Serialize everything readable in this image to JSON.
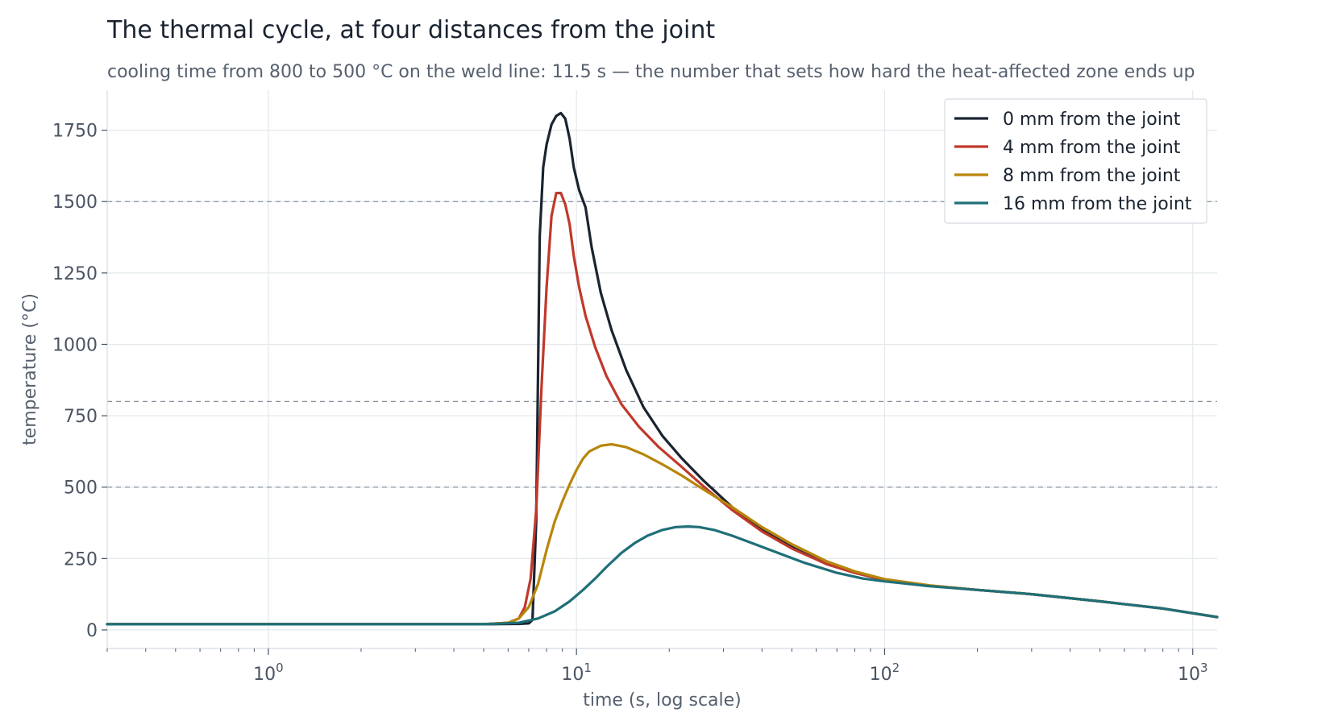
{
  "title": "The thermal cycle, at four distances from the joint",
  "subtitle": "cooling time from 800 to 500 °C on the weld line: 11.5 s — the number that sets how hard the heat-affected zone ends up",
  "chart_data": {
    "type": "line",
    "title": "The thermal cycle, at four distances from the joint",
    "subtitle": "cooling time from 800 to 500 °C on the weld line: 11.5 s — the number that sets how hard the heat-affected zone ends up",
    "xlabel": "time  (s, log scale)",
    "ylabel": "temperature  (°C)",
    "x_scale": "log",
    "xlim": [
      0.3,
      1200
    ],
    "ylim": [
      -65,
      1890
    ],
    "x_ticks": [
      {
        "value": 1,
        "base": "10",
        "exp": "0"
      },
      {
        "value": 10,
        "base": "10",
        "exp": "1"
      },
      {
        "value": 100,
        "base": "10",
        "exp": "2"
      },
      {
        "value": 1000,
        "base": "10",
        "exp": "3"
      }
    ],
    "y_ticks": [
      0,
      250,
      500,
      750,
      1000,
      1250,
      1500,
      1750
    ],
    "reference_lines": [
      1500,
      800,
      500
    ],
    "grid": true,
    "legend_position": "top-right",
    "series": [
      {
        "name": "0 mm from the joint",
        "color": "#1b2430",
        "x": [
          0.3,
          5.0,
          6.5,
          7.0,
          7.2,
          7.4,
          7.6,
          7.8,
          8.0,
          8.3,
          8.6,
          8.9,
          9.2,
          9.5,
          9.8,
          10.2,
          10.7,
          11.2,
          12.0,
          13.0,
          14.5,
          16.5,
          19.0,
          22.0,
          26.0,
          32.0,
          40.0,
          50.0,
          65.0,
          80.0,
          100.0,
          140.0,
          200.0,
          300.0,
          500.0,
          800.0,
          1200.0
        ],
        "y": [
          20,
          20,
          21,
          23,
          35,
          380,
          1380,
          1620,
          1700,
          1770,
          1800,
          1810,
          1790,
          1720,
          1620,
          1540,
          1480,
          1340,
          1180,
          1050,
          910,
          780,
          680,
          600,
          520,
          430,
          350,
          290,
          230,
          200,
          175,
          155,
          140,
          125,
          100,
          75,
          45
        ]
      },
      {
        "name": "4 mm from the joint",
        "color": "#c0392b",
        "x": [
          0.3,
          5.0,
          6.0,
          6.5,
          6.8,
          7.1,
          7.4,
          7.7,
          8.0,
          8.3,
          8.6,
          8.9,
          9.2,
          9.5,
          9.8,
          10.2,
          10.7,
          11.5,
          12.5,
          14.0,
          16.0,
          18.5,
          22.0,
          26.0,
          32.0,
          40.0,
          50.0,
          65.0,
          80.0,
          100.0,
          140.0,
          200.0,
          300.0,
          500.0,
          800.0,
          1200.0
        ],
        "y": [
          20,
          20,
          25,
          40,
          80,
          180,
          420,
          850,
          1200,
          1450,
          1530,
          1530,
          1490,
          1420,
          1310,
          1200,
          1100,
          990,
          890,
          790,
          710,
          640,
          570,
          500,
          420,
          345,
          285,
          230,
          200,
          175,
          155,
          140,
          125,
          100,
          75,
          45
        ]
      },
      {
        "name": "8 mm from the joint",
        "color": "#b8860b",
        "x": [
          0.3,
          5.0,
          6.0,
          6.5,
          7.0,
          7.5,
          8.0,
          8.5,
          9.0,
          9.5,
          10.0,
          10.5,
          11.0,
          12.0,
          13.0,
          14.5,
          16.5,
          19.0,
          22.0,
          26.0,
          32.0,
          40.0,
          50.0,
          65.0,
          80.0,
          100.0,
          140.0,
          200.0,
          300.0,
          500.0,
          800.0,
          1200.0
        ],
        "y": [
          20,
          20,
          25,
          40,
          80,
          160,
          280,
          380,
          450,
          510,
          560,
          600,
          625,
          645,
          650,
          640,
          615,
          580,
          540,
          490,
          430,
          360,
          300,
          240,
          205,
          178,
          156,
          140,
          125,
          100,
          75,
          45
        ]
      },
      {
        "name": "16 mm from the joint",
        "color": "#1f6f78",
        "x": [
          0.3,
          5.0,
          6.5,
          7.5,
          8.5,
          9.5,
          10.5,
          11.5,
          12.5,
          14.0,
          15.5,
          17.0,
          19.0,
          21.0,
          23.0,
          25.0,
          28.0,
          32.0,
          38.0,
          45.0,
          55.0,
          70.0,
          85.0,
          100.0,
          140.0,
          200.0,
          300.0,
          500.0,
          800.0,
          1200.0
        ],
        "y": [
          20,
          20,
          25,
          40,
          65,
          100,
          140,
          180,
          220,
          270,
          305,
          330,
          350,
          360,
          362,
          360,
          350,
          330,
          300,
          270,
          235,
          200,
          180,
          170,
          153,
          140,
          125,
          100,
          75,
          45
        ]
      }
    ]
  }
}
